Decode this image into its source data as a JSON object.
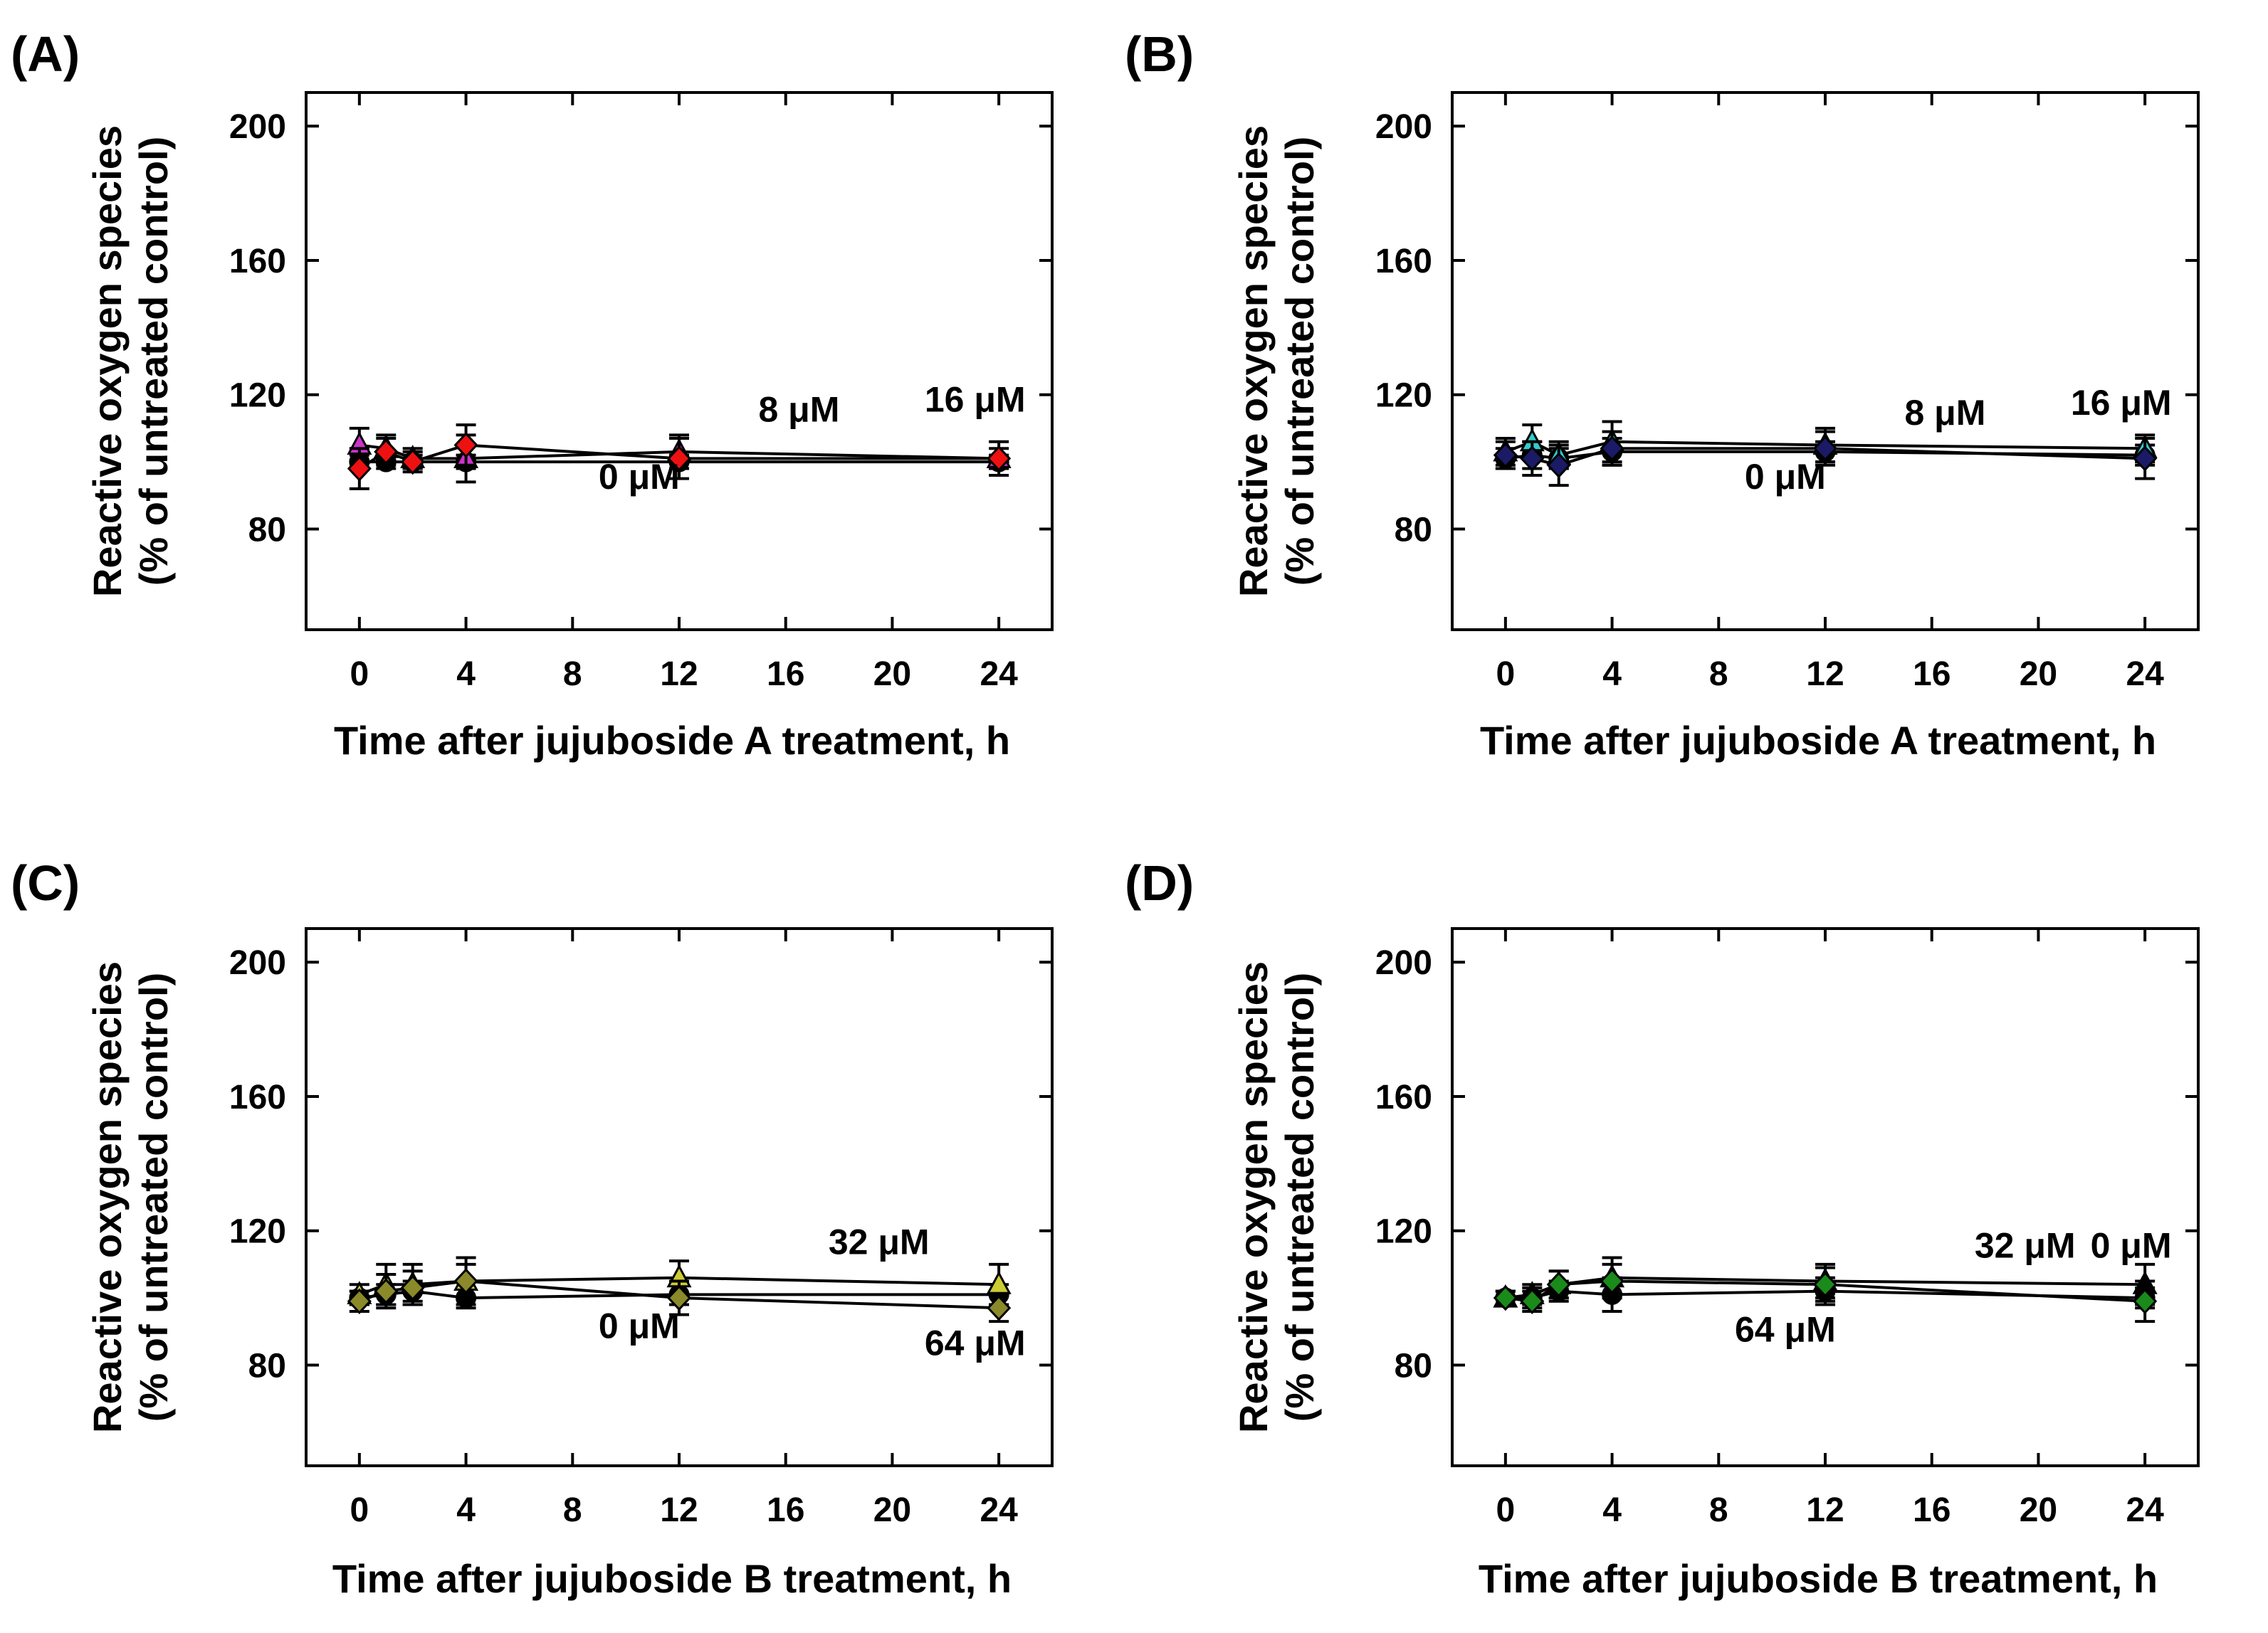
{
  "figure": {
    "y_tick_labels": [
      "80",
      "120",
      "160",
      "200"
    ],
    "x_tick_labels": [
      "0",
      "4",
      "8",
      "12",
      "16",
      "20",
      "24"
    ],
    "y_label_line1": "Reactive oxygen species",
    "y_label_line2": "(% of untreated control)"
  },
  "chart_data": [
    {
      "type": "line",
      "panel": "(A)",
      "xlabel": "Time after jujuboside A treatment, h",
      "ylabel": "Reactive oxygen species (% of untreated control)",
      "xlim": [
        -2,
        26
      ],
      "ylim": [
        50,
        210
      ],
      "xticks": [
        0,
        4,
        8,
        12,
        16,
        20,
        24
      ],
      "yticks": [
        80,
        120,
        160,
        200
      ],
      "x": [
        0,
        1,
        2,
        4,
        12,
        24
      ],
      "series": [
        {
          "name": "0 μM",
          "values": [
            100,
            100,
            100,
            100,
            100,
            100
          ],
          "errors": [
            2,
            2,
            2,
            2,
            2,
            2
          ],
          "marker": "circle",
          "color": "#000000"
        },
        {
          "name": "8 μM",
          "values": [
            105,
            104,
            101,
            101,
            103,
            101
          ],
          "errors": [
            5,
            4,
            3,
            7,
            5,
            3
          ],
          "marker": "triangle",
          "color": "#cc33cc"
        },
        {
          "name": "16 μM",
          "values": [
            98,
            103,
            100,
            105,
            101,
            101
          ],
          "errors": [
            6,
            4,
            3,
            6,
            6,
            5
          ],
          "marker": "diamond",
          "color": "#ee1111"
        }
      ],
      "annotations": [
        "0 μM",
        "8 μM",
        "16 μM"
      ]
    },
    {
      "type": "line",
      "panel": "(B)",
      "xlabel": "Time after jujuboside A treatment, h",
      "ylabel": "Reactive oxygen species (% of untreated control)",
      "xlim": [
        -2,
        26
      ],
      "ylim": [
        50,
        210
      ],
      "xticks": [
        0,
        4,
        8,
        12,
        16,
        20,
        24
      ],
      "yticks": [
        80,
        120,
        160,
        200
      ],
      "x": [
        0,
        1,
        2,
        4,
        12,
        24
      ],
      "series": [
        {
          "name": "0 μM",
          "values": [
            101,
            102,
            101,
            103,
            103,
            102
          ],
          "errors": [
            3,
            4,
            3,
            4,
            3,
            3
          ],
          "marker": "circle",
          "color": "#000000"
        },
        {
          "name": "8 μM",
          "values": [
            103,
            106,
            102,
            106,
            105,
            104
          ],
          "errors": [
            4,
            5,
            4,
            6,
            5,
            4
          ],
          "marker": "triangle",
          "color": "#33cccc"
        },
        {
          "name": "16 μM",
          "values": [
            102,
            101,
            99,
            104,
            104,
            101
          ],
          "errors": [
            4,
            5,
            6,
            5,
            5,
            6
          ],
          "marker": "diamond",
          "color": "#1a1a66"
        }
      ],
      "annotations": [
        "0 μM",
        "8 μM",
        "16 μM"
      ]
    },
    {
      "type": "line",
      "panel": "(C)",
      "xlabel": "Time after jujuboside B treatment, h",
      "ylabel": "Reactive oxygen species (% of untreated control)",
      "xlim": [
        -2,
        26
      ],
      "ylim": [
        50,
        210
      ],
      "xticks": [
        0,
        4,
        8,
        12,
        16,
        20,
        24
      ],
      "yticks": [
        80,
        120,
        160,
        200
      ],
      "x": [
        0,
        1,
        2,
        4,
        12,
        24
      ],
      "series": [
        {
          "name": "0 μM",
          "values": [
            100,
            101,
            102,
            100,
            101,
            101
          ],
          "errors": [
            2,
            3,
            3,
            3,
            3,
            3
          ],
          "marker": "circle",
          "color": "#000000"
        },
        {
          "name": "32 μM",
          "values": [
            101,
            104,
            104,
            105,
            106,
            104
          ],
          "errors": [
            3,
            6,
            6,
            7,
            5,
            6
          ],
          "marker": "triangle",
          "color": "#cccc33"
        },
        {
          "name": "64 μM",
          "values": [
            99,
            102,
            103,
            105,
            100,
            97
          ],
          "errors": [
            3,
            5,
            5,
            5,
            5,
            4
          ],
          "marker": "diamond",
          "color": "#8a8a2a"
        }
      ],
      "annotations": [
        "32 μM",
        "0 μM",
        "64 μM"
      ]
    },
    {
      "type": "line",
      "panel": "(D)",
      "xlabel": "Time after jujuboside B treatment, h",
      "ylabel": "Reactive oxygen species (% of untreated control)",
      "xlim": [
        -2,
        26
      ],
      "ylim": [
        50,
        210
      ],
      "xticks": [
        0,
        4,
        8,
        12,
        16,
        20,
        24
      ],
      "yticks": [
        80,
        120,
        160,
        200
      ],
      "x": [
        0,
        1,
        2,
        4,
        12,
        24
      ],
      "series": [
        {
          "name": "0 μM",
          "values": [
            100,
            100,
            102,
            101,
            102,
            100
          ],
          "errors": [
            2,
            3,
            3,
            5,
            4,
            3
          ],
          "marker": "circle",
          "color": "#000000"
        },
        {
          "name": "32 μM",
          "values": [
            100,
            101,
            104,
            106,
            105,
            104
          ],
          "errors": [
            2,
            3,
            4,
            6,
            5,
            6
          ],
          "marker": "triangle",
          "color": "#000000"
        },
        {
          "name": "64 μM",
          "values": [
            100,
            99,
            104,
            105,
            104,
            99
          ],
          "errors": [
            2,
            3,
            4,
            5,
            5,
            6
          ],
          "marker": "diamond",
          "color": "#1a8a1a"
        }
      ],
      "annotations": [
        "32 μM",
        "64 μM",
        "0 μM"
      ]
    }
  ]
}
